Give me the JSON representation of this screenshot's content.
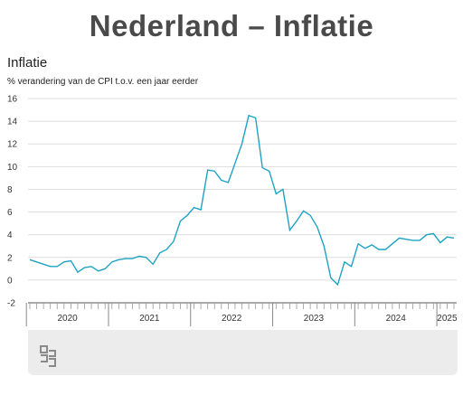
{
  "page_title": "Nederland – Inflatie",
  "chart_title": "Inflatie",
  "chart_subtitle": "% verandering van de CPI t.o.v. een jaar eerder",
  "colors": {
    "line": "#1ea3c3",
    "grid": "#dddddd",
    "axis": "#555555",
    "panel": "#ececec"
  },
  "logo_icon": "cbs-logo-icon",
  "chart_data": {
    "type": "line",
    "title": "Inflatie",
    "subtitle": "% verandering van de CPI t.o.v. een jaar eerder",
    "xlabel": "",
    "ylabel": "",
    "ylim": [
      -2,
      16
    ],
    "yticks": [
      "16",
      "14",
      "12",
      "10",
      "8",
      "6",
      "4",
      "2",
      "0",
      "-2"
    ],
    "year_labels": [
      "2020",
      "2021",
      "2022",
      "2023",
      "2024",
      "2025"
    ],
    "grid": true,
    "x": [
      "2020-01",
      "2020-02",
      "2020-03",
      "2020-04",
      "2020-05",
      "2020-06",
      "2020-07",
      "2020-08",
      "2020-09",
      "2020-10",
      "2020-11",
      "2020-12",
      "2021-01",
      "2021-02",
      "2021-03",
      "2021-04",
      "2021-05",
      "2021-06",
      "2021-07",
      "2021-08",
      "2021-09",
      "2021-10",
      "2021-11",
      "2021-12",
      "2022-01",
      "2022-02",
      "2022-03",
      "2022-04",
      "2022-05",
      "2022-06",
      "2022-07",
      "2022-08",
      "2022-09",
      "2022-10",
      "2022-11",
      "2022-12",
      "2023-01",
      "2023-02",
      "2023-03",
      "2023-04",
      "2023-05",
      "2023-06",
      "2023-07",
      "2023-08",
      "2023-09",
      "2023-10",
      "2023-11",
      "2023-12",
      "2024-01",
      "2024-02",
      "2024-03",
      "2024-04",
      "2024-05",
      "2024-06",
      "2024-07",
      "2024-08",
      "2024-09",
      "2024-10",
      "2024-11",
      "2024-12",
      "2025-01",
      "2025-02",
      "2025-03"
    ],
    "series": [
      {
        "values": [
          1.8,
          1.6,
          1.4,
          1.2,
          1.2,
          1.6,
          1.7,
          0.7,
          1.1,
          1.2,
          0.8,
          1.0,
          1.6,
          1.8,
          1.9,
          1.9,
          2.1,
          2.0,
          1.4,
          2.4,
          2.7,
          3.4,
          5.2,
          5.7,
          6.4,
          6.2,
          9.7,
          9.6,
          8.8,
          8.6,
          10.3,
          12.0,
          14.5,
          14.3,
          9.9,
          9.6,
          7.6,
          8.0,
          4.4,
          5.2,
          6.1,
          5.7,
          4.7,
          3.0,
          0.2,
          -0.4,
          1.6,
          1.2,
          3.2,
          2.8,
          3.1,
          2.7,
          2.7,
          3.2,
          3.7,
          3.6,
          3.5,
          3.5,
          4.0,
          4.1,
          3.3,
          3.8,
          3.7
        ]
      }
    ]
  }
}
